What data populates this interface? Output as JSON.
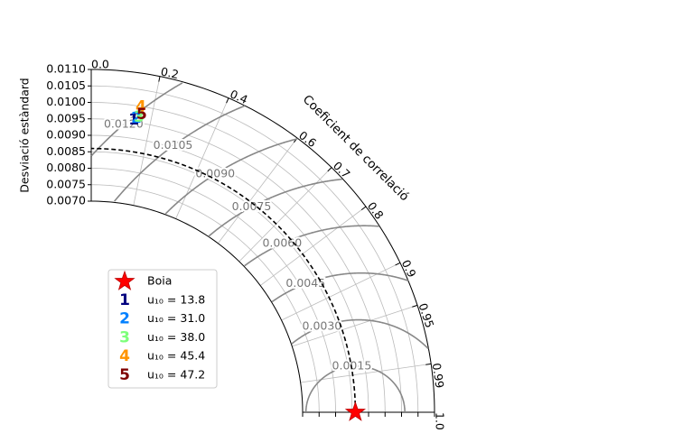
{
  "chart_data": {
    "type": "taylor",
    "ylabel": "Desviació estàndard",
    "angle_label": "Coeficient de correlació",
    "rlim": [
      0.007,
      0.011
    ],
    "rticks": [
      {
        "value": 0.007,
        "label": "0.0070"
      },
      {
        "value": 0.0075,
        "label": "0.0075"
      },
      {
        "value": 0.008,
        "label": "0.0080"
      },
      {
        "value": 0.0085,
        "label": "0.0085"
      },
      {
        "value": 0.009,
        "label": "0.0090"
      },
      {
        "value": 0.0095,
        "label": "0.0095"
      },
      {
        "value": 0.01,
        "label": "0.0100"
      },
      {
        "value": 0.0105,
        "label": "0.0105"
      },
      {
        "value": 0.011,
        "label": "0.0110"
      }
    ],
    "corr_ticks": [
      {
        "value": 0,
        "label": "0.0"
      },
      0.2,
      0.4,
      0.6,
      0.7,
      0.8,
      0.9,
      0.95,
      0.99,
      {
        "value": 1,
        "label": "1.0"
      }
    ],
    "grid": true,
    "reference": {
      "name": "Boia",
      "std": 0.0086,
      "corr": 1,
      "color": "#ff0000"
    },
    "rmsd_levels": [
      {
        "value": 0.0015,
        "label": "0.0015"
      },
      {
        "value": 0.003,
        "label": "0.0030"
      },
      {
        "value": 0.0045,
        "label": "0.0045"
      },
      {
        "value": 0.006,
        "label": "0.0060"
      },
      {
        "value": 0.0075,
        "label": "0.0075"
      },
      {
        "value": 0.009,
        "label": "0.0090"
      },
      {
        "value": 0.0105,
        "label": "0.0105"
      },
      {
        "value": 0.012,
        "label": "0.0120"
      }
    ],
    "series": [
      {
        "name": "u₁₀ = 13.8",
        "marker": "1",
        "color": "#00007f",
        "corr": 0.144,
        "std": 0.00956
      },
      {
        "name": "u₁₀ = 31.0",
        "marker": "2",
        "color": "#0080ff",
        "corr": 0.152,
        "std": 0.00962
      },
      {
        "name": "u₁₀ = 38.0",
        "marker": "3",
        "color": "#7dff7a",
        "corr": 0.16,
        "std": 0.00967
      },
      {
        "name": "u₁₀ = 45.4",
        "marker": "4",
        "color": "#ff9400",
        "corr": 0.16,
        "std": 0.00999
      },
      {
        "name": "u₁₀ = 47.2",
        "marker": "5",
        "color": "#7f0000",
        "corr": 0.167,
        "std": 0.00976
      }
    ],
    "legend": "lower left"
  }
}
